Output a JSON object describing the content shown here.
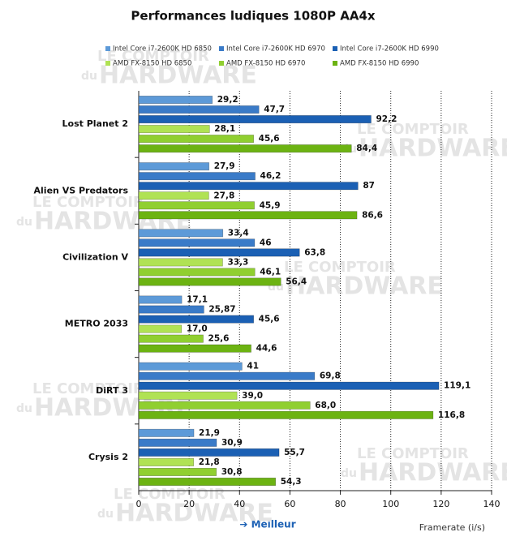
{
  "chart_data": {
    "type": "hbar",
    "title": "Performances ludiques 1080P AA4x",
    "x_label": "Framerate (i/s)",
    "annotation": "➔ Meilleur",
    "watermark": {
      "top": "LE COMPTOIR",
      "small": "du",
      "main": "HARDWARE"
    },
    "categories": [
      "Lost Planet 2",
      "Alien VS Predators",
      "Civilization V",
      "METRO 2033",
      "DiRT 3",
      "Crysis 2"
    ],
    "series": [
      {
        "name": "Intel Core i7-2600K HD 6850",
        "color": "#5d9ad8",
        "values": [
          29.2,
          27.9,
          33.4,
          17.1,
          41,
          21.9
        ],
        "value_labels": [
          "29,2",
          "27,9",
          "33,4",
          "17,1",
          "41",
          "21,9"
        ]
      },
      {
        "name": "Intel Core i7-2600K HD 6970",
        "color": "#3a7bc8",
        "values": [
          47.7,
          46.2,
          46,
          25.87,
          69.8,
          30.9
        ],
        "value_labels": [
          "47,7",
          "46,2",
          "46",
          "25,87",
          "69,8",
          "30,9"
        ]
      },
      {
        "name": "Intel Core i7-2600K HD 6990",
        "color": "#1b60b4",
        "values": [
          92.2,
          87,
          63.8,
          45.6,
          119.1,
          55.7
        ],
        "value_labels": [
          "92,2",
          "87",
          "63,8",
          "45,6",
          "119,1",
          "55,7"
        ]
      },
      {
        "name": "AMD FX-8150 HD 6850",
        "color": "#b0e254",
        "values": [
          28.1,
          27.8,
          33.3,
          17.0,
          39.0,
          21.8
        ],
        "value_labels": [
          "28,1",
          "27,8",
          "33,3",
          "17,0",
          "39,0",
          "21,8"
        ]
      },
      {
        "name": "AMD FX-8150 HD 6970",
        "color": "#90cf30",
        "values": [
          45.6,
          45.9,
          46.1,
          25.6,
          68.0,
          30.8
        ],
        "value_labels": [
          "45,6",
          "45,9",
          "46,1",
          "25,6",
          "68,0",
          "30,8"
        ]
      },
      {
        "name": "AMD FX-8150 HD 6990",
        "color": "#6cb312",
        "values": [
          84.4,
          86.6,
          56.4,
          44.6,
          116.8,
          54.3
        ],
        "value_labels": [
          "84,4",
          "86,6",
          "56,4",
          "44,6",
          "116,8",
          "54,3"
        ]
      }
    ],
    "xlim": [
      0,
      140
    ],
    "xticks": [
      0,
      20,
      40,
      60,
      80,
      100,
      120,
      140
    ],
    "grid": true
  }
}
